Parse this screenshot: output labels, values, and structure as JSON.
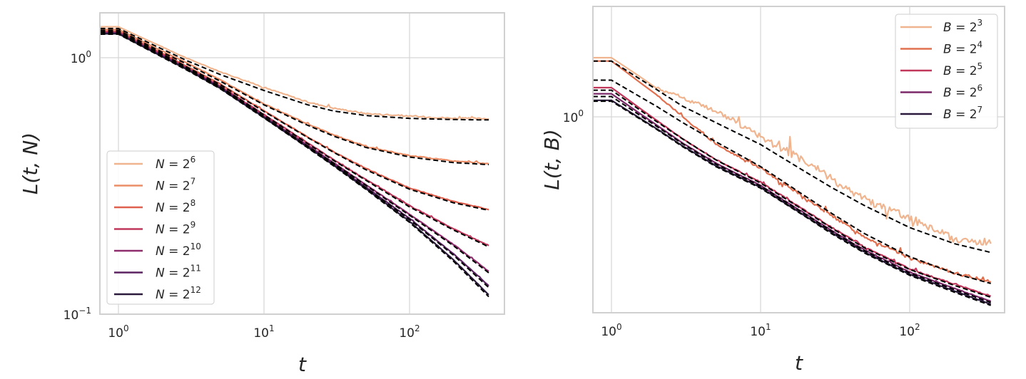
{
  "chart_data": [
    {
      "type": "line",
      "panel": "left",
      "xlabel": "t",
      "ylabel": "L(t, N)",
      "xscale": "log",
      "yscale": "log",
      "xlim": [
        0.75,
        450
      ],
      "ylim": [
        0.1,
        1.58
      ],
      "xticks": [
        {
          "base": "10",
          "exp": "0",
          "value": 1
        },
        {
          "base": "10",
          "exp": "1",
          "value": 10
        },
        {
          "base": "10",
          "exp": "2",
          "value": 100
        }
      ],
      "yticks": [
        {
          "base": "10",
          "exp": "0",
          "value": 1
        },
        {
          "base": "10",
          "exp": "−1",
          "value": 0.1
        }
      ],
      "grid": true,
      "legend_position": "lower left",
      "x": [
        0.75,
        1,
        2,
        3,
        5,
        10,
        20,
        30,
        50,
        100,
        200,
        350
      ],
      "series": [
        {
          "name": "N = 2^6",
          "label_base": "N = 2",
          "label_exp": "6",
          "color": "#f0b48f",
          "noise": 0.012,
          "values": [
            1.32,
            1.32,
            1.1,
            0.99,
            0.88,
            0.765,
            0.67,
            0.635,
            0.605,
            0.59,
            0.58,
            0.578
          ]
        },
        {
          "name": "N = 2^7",
          "label_base": "N = 2",
          "label_exp": "7",
          "color": "#eb8d66",
          "noise": 0.008,
          "values": [
            1.29,
            1.29,
            1.06,
            0.95,
            0.82,
            0.66,
            0.55,
            0.5,
            0.45,
            0.415,
            0.395,
            0.386
          ]
        },
        {
          "name": "N = 2^8",
          "label_base": "N = 2",
          "label_exp": "8",
          "color": "#e0604f",
          "noise": 0.006,
          "values": [
            1.27,
            1.27,
            1.04,
            0.92,
            0.79,
            0.62,
            0.49,
            0.43,
            0.37,
            0.31,
            0.275,
            0.256
          ]
        },
        {
          "name": "N = 2^9",
          "label_base": "N = 2",
          "label_exp": "9",
          "color": "#c0375b",
          "noise": 0.005,
          "values": [
            1.26,
            1.26,
            1.03,
            0.91,
            0.775,
            0.6,
            0.465,
            0.4,
            0.335,
            0.265,
            0.215,
            0.185
          ]
        },
        {
          "name": "N = 2^10",
          "label_base": "N = 2",
          "label_exp": "10",
          "color": "#8f2c6c",
          "noise": 0.004,
          "values": [
            1.25,
            1.25,
            1.02,
            0.905,
            0.77,
            0.59,
            0.455,
            0.39,
            0.32,
            0.245,
            0.187,
            0.147
          ]
        },
        {
          "name": "N = 2^11",
          "label_base": "N = 2",
          "label_exp": "11",
          "color": "#5a2260",
          "noise": 0.003,
          "values": [
            1.245,
            1.245,
            1.015,
            0.9,
            0.765,
            0.587,
            0.45,
            0.385,
            0.313,
            0.236,
            0.172,
            0.129
          ]
        },
        {
          "name": "N = 2^12",
          "label_base": "N = 2",
          "label_exp": "12",
          "color": "#2b1a3b",
          "noise": 0.003,
          "values": [
            1.24,
            1.24,
            1.01,
            0.895,
            0.76,
            0.584,
            0.447,
            0.381,
            0.309,
            0.23,
            0.163,
            0.119
          ]
        }
      ],
      "fits": [
        {
          "name": "fit N = 2^6",
          "values": [
            1.3,
            1.3,
            1.08,
            0.97,
            0.86,
            0.745,
            0.655,
            0.62,
            0.595,
            0.58,
            0.574,
            0.572
          ]
        },
        {
          "name": "fit N = 2^7",
          "values": [
            1.28,
            1.28,
            1.05,
            0.94,
            0.81,
            0.655,
            0.545,
            0.495,
            0.447,
            0.41,
            0.39,
            0.383
          ]
        },
        {
          "name": "fit N = 2^8",
          "values": [
            1.265,
            1.265,
            1.035,
            0.915,
            0.785,
            0.617,
            0.488,
            0.428,
            0.366,
            0.307,
            0.272,
            0.254
          ]
        },
        {
          "name": "fit N = 2^9",
          "values": [
            1.255,
            1.255,
            1.025,
            0.905,
            0.772,
            0.598,
            0.462,
            0.398,
            0.333,
            0.262,
            0.213,
            0.183
          ]
        },
        {
          "name": "fit N = 2^10",
          "values": [
            1.245,
            1.245,
            1.015,
            0.9,
            0.766,
            0.588,
            0.452,
            0.388,
            0.318,
            0.243,
            0.185,
            0.145
          ]
        },
        {
          "name": "fit N = 2^11",
          "values": [
            1.24,
            1.24,
            1.01,
            0.895,
            0.762,
            0.585,
            0.448,
            0.383,
            0.311,
            0.234,
            0.17,
            0.127
          ]
        },
        {
          "name": "fit N = 2^12",
          "values": [
            1.235,
            1.235,
            1.005,
            0.89,
            0.757,
            0.582,
            0.445,
            0.379,
            0.307,
            0.228,
            0.161,
            0.117
          ]
        }
      ]
    },
    {
      "type": "line",
      "panel": "right",
      "xlabel": "t",
      "ylabel": "L(t, B)",
      "xscale": "log",
      "yscale": "log",
      "xlim": [
        0.75,
        435
      ],
      "ylim": [
        0.172,
        2.69
      ],
      "xticks": [
        {
          "base": "10",
          "exp": "0",
          "value": 1
        },
        {
          "base": "10",
          "exp": "1",
          "value": 10
        },
        {
          "base": "10",
          "exp": "2",
          "value": 100
        }
      ],
      "yticks": [
        {
          "base": "10",
          "exp": "0",
          "value": 1
        }
      ],
      "grid": true,
      "legend_position": "upper right",
      "x": [
        0.75,
        1,
        2,
        3,
        5,
        10,
        20,
        30,
        50,
        100,
        200,
        350
      ],
      "series": [
        {
          "name": "B = 2^3",
          "label_base": "B = 2",
          "label_exp": "3",
          "color": "#f0b48f",
          "noise": 0.07,
          "values": [
            1.7,
            1.7,
            1.3,
            1.18,
            1.05,
            0.83,
            0.66,
            0.57,
            0.47,
            0.4,
            0.33,
            0.32
          ]
        },
        {
          "name": "B = 2^4",
          "label_base": "B = 2",
          "label_exp": "4",
          "color": "#e0704f",
          "noise": 0.025,
          "values": [
            1.65,
            1.65,
            1.22,
            1.0,
            0.78,
            0.63,
            0.48,
            0.41,
            0.34,
            0.28,
            0.245,
            0.228
          ]
        },
        {
          "name": "B = 2^5",
          "label_base": "B = 2",
          "label_exp": "5",
          "color": "#c0375b",
          "noise": 0.01,
          "values": [
            1.3,
            1.3,
            0.97,
            0.82,
            0.68,
            0.556,
            0.43,
            0.37,
            0.31,
            0.255,
            0.222,
            0.2
          ]
        },
        {
          "name": "B = 2^6",
          "label_base": "B = 2",
          "label_exp": "6",
          "color": "#7a2868",
          "noise": 0.005,
          "values": [
            1.23,
            1.23,
            0.93,
            0.79,
            0.66,
            0.54,
            0.418,
            0.36,
            0.302,
            0.248,
            0.214,
            0.191
          ]
        },
        {
          "name": "B = 2^7",
          "label_base": "B = 2",
          "label_exp": "7",
          "color": "#2b1a3b",
          "noise": 0.004,
          "values": [
            1.16,
            1.16,
            0.9,
            0.77,
            0.645,
            0.53,
            0.41,
            0.353,
            0.296,
            0.243,
            0.209,
            0.186
          ]
        }
      ],
      "fits": [
        {
          "name": "fit B = 2^3",
          "values": [
            1.65,
            1.65,
            1.28,
            1.1,
            0.95,
            0.78,
            0.61,
            0.53,
            0.45,
            0.37,
            0.32,
            0.296
          ]
        },
        {
          "name": "fit B = 2^4",
          "values": [
            1.39,
            1.39,
            1.1,
            0.95,
            0.8,
            0.64,
            0.49,
            0.42,
            0.35,
            0.285,
            0.245,
            0.224
          ]
        },
        {
          "name": "fit B = 2^5",
          "values": [
            1.27,
            1.27,
            0.96,
            0.82,
            0.68,
            0.552,
            0.428,
            0.368,
            0.308,
            0.254,
            0.22,
            0.198
          ]
        },
        {
          "name": "fit B = 2^6",
          "values": [
            1.2,
            1.2,
            0.92,
            0.785,
            0.655,
            0.537,
            0.416,
            0.358,
            0.3,
            0.246,
            0.212,
            0.189
          ]
        },
        {
          "name": "fit B = 2^7",
          "values": [
            1.15,
            1.15,
            0.895,
            0.765,
            0.64,
            0.527,
            0.408,
            0.35,
            0.294,
            0.241,
            0.207,
            0.184
          ]
        }
      ]
    }
  ],
  "panels": {
    "left": {
      "ylabel": "L(t, N)",
      "xlabel": "t"
    },
    "right": {
      "ylabel": "L(t, B)",
      "xlabel": "t"
    }
  }
}
